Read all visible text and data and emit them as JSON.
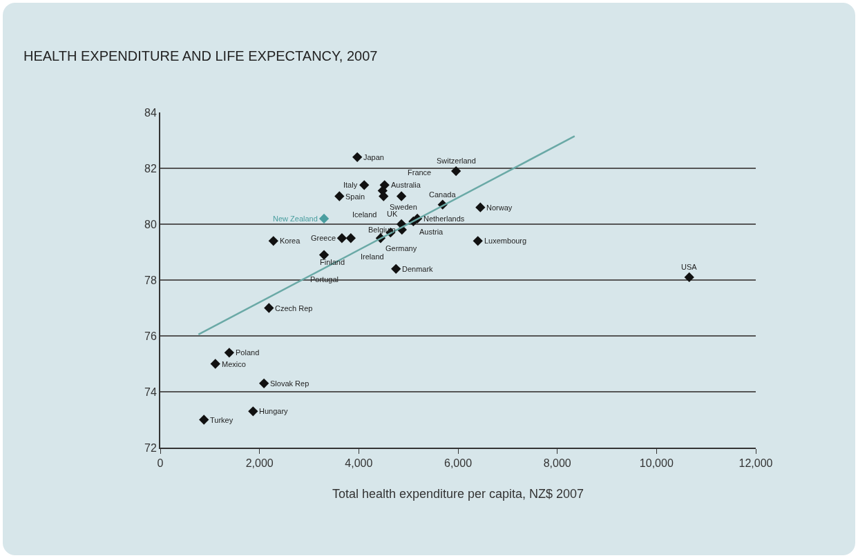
{
  "chart_data": {
    "type": "scatter",
    "title": "HEALTH EXPENDITURE AND LIFE EXPECTANCY, 2007",
    "xlabel": "Total health expenditure per capita, NZ$ 2007",
    "xlim": [
      0,
      12000
    ],
    "xticks": [
      {
        "value": 0,
        "label": "0"
      },
      {
        "value": 2000,
        "label": "2,000"
      },
      {
        "value": 4000,
        "label": "4,000"
      },
      {
        "value": 6000,
        "label": "6,000"
      },
      {
        "value": 8000,
        "label": "8,000"
      },
      {
        "value": 10000,
        "label": "10,000"
      },
      {
        "value": 12000,
        "label": "12,000"
      }
    ],
    "ylim": [
      72,
      84
    ],
    "yticks": [
      72,
      74,
      76,
      78,
      80,
      82,
      84
    ],
    "grid": "y",
    "marker": "diamond",
    "series": [
      {
        "x": [
          3970,
          5960,
          4110,
          4520,
          3610,
          4480,
          4500,
          4860,
          5690,
          6450,
          3300,
          5180,
          5100,
          4860,
          4870,
          4640,
          3660,
          3840,
          4440,
          2280,
          6400,
          3300,
          4750,
          10660,
          2190,
          1390,
          1110,
          2090,
          1870,
          880
        ],
        "values": [
          82.4,
          81.9,
          81.4,
          81.4,
          81.0,
          81.2,
          81.0,
          81.0,
          80.7,
          80.6,
          80.2,
          80.2,
          80.1,
          80.0,
          79.8,
          79.7,
          79.5,
          79.5,
          79.5,
          79.4,
          79.4,
          78.9,
          78.4,
          78.1,
          77.0,
          75.4,
          75.0,
          74.3,
          73.3,
          73.0
        ],
        "colors": [
          "#111111",
          "#111111",
          "#111111",
          "#111111",
          "#111111",
          "#111111",
          "#111111",
          "#111111",
          "#111111",
          "#111111",
          "#4a9ea0",
          "#111111",
          "#111111",
          "#111111",
          "#111111",
          "#111111",
          "#111111",
          "#111111",
          "#111111",
          "#111111",
          "#111111",
          "#111111",
          "#111111",
          "#111111",
          "#111111",
          "#111111",
          "#111111",
          "#111111",
          "#111111",
          "#111111"
        ]
      },
      {
        "type": "line",
        "color": "#6aa9a6",
        "marker": "none",
        "x": [
          770,
          8350
        ],
        "values": [
          76.05,
          83.15
        ]
      }
    ],
    "annotations": [
      {
        "text": "Japan",
        "x": 3970,
        "y": 82.4
      },
      {
        "text": "Switzerland",
        "x": 5960,
        "y": 81.9
      },
      {
        "text": "Italy",
        "x": 4110,
        "y": 81.4
      },
      {
        "text": "Australia",
        "x": 4520,
        "y": 81.4
      },
      {
        "text": "Spain",
        "x": 3610,
        "y": 81.0
      },
      {
        "text": "Iceland",
        "x": 4480,
        "y": 81.2
      },
      {
        "text": "Sweden",
        "x": 4500,
        "y": 81.0
      },
      {
        "text": "France",
        "x": 4860,
        "y": 81.0
      },
      {
        "text": "Canada",
        "x": 5690,
        "y": 80.7
      },
      {
        "text": "Norway",
        "x": 6450,
        "y": 80.6
      },
      {
        "text": "New Zealand",
        "x": 3300,
        "y": 80.2
      },
      {
        "text": "Netherlands",
        "x": 5180,
        "y": 80.2
      },
      {
        "text": "Austria",
        "x": 5100,
        "y": 80.1
      },
      {
        "text": "Germany",
        "x": 4860,
        "y": 80.0
      },
      {
        "text": "Belgium",
        "x": 4870,
        "y": 79.8
      },
      {
        "text": "Ireland",
        "x": 4640,
        "y": 79.7
      },
      {
        "text": "Greece",
        "x": 3660,
        "y": 79.5
      },
      {
        "text": "Finland",
        "x": 3840,
        "y": 79.5
      },
      {
        "text": "UK",
        "x": 4440,
        "y": 79.5
      },
      {
        "text": "Korea",
        "x": 2280,
        "y": 79.4
      },
      {
        "text": "Luxembourg",
        "x": 6400,
        "y": 79.4
      },
      {
        "text": "Portugal",
        "x": 3300,
        "y": 78.9
      },
      {
        "text": "Denmark",
        "x": 4750,
        "y": 78.4
      },
      {
        "text": "USA",
        "x": 10660,
        "y": 78.1
      },
      {
        "text": "Czech Rep",
        "x": 2190,
        "y": 77.0
      },
      {
        "text": "Poland",
        "x": 1390,
        "y": 75.4
      },
      {
        "text": "Mexico",
        "x": 1110,
        "y": 75.0
      },
      {
        "text": "Slovak Rep",
        "x": 2090,
        "y": 74.3
      },
      {
        "text": "Hungary",
        "x": 1870,
        "y": 73.3
      },
      {
        "text": "Turkey",
        "x": 880,
        "y": 73.0
      }
    ]
  }
}
